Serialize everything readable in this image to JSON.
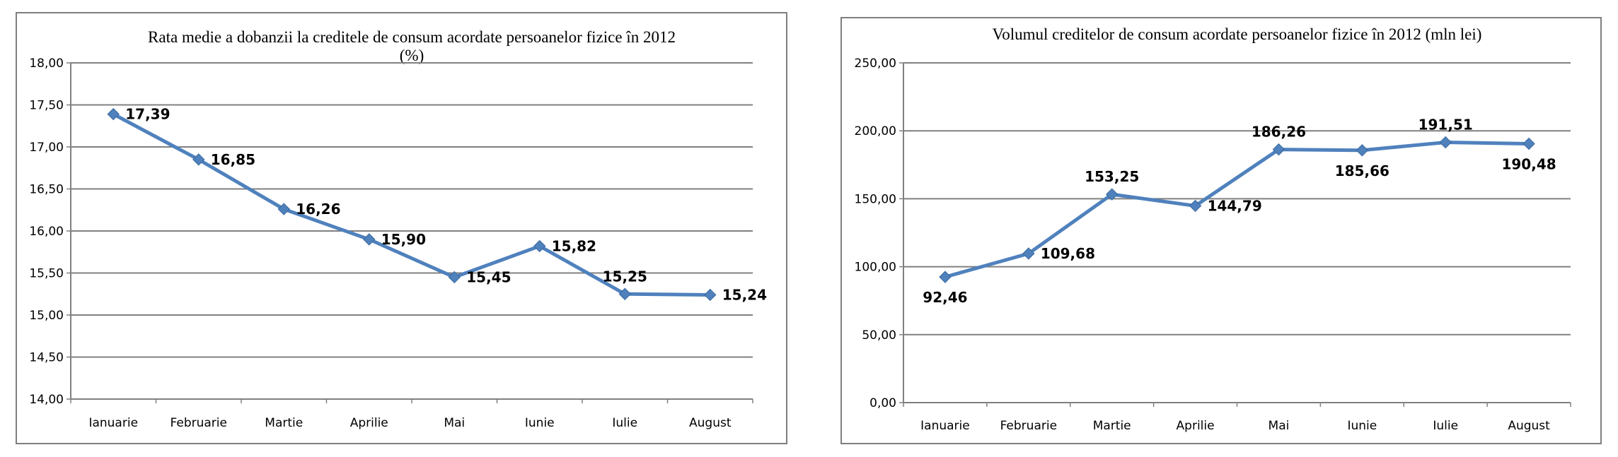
{
  "chart_data": [
    {
      "type": "line",
      "title": "Rata medie a dobanzii la creditele de consum acordate persoanelor fizice în 2012",
      "subtitle": "(%)",
      "categories": [
        "Ianuarie",
        "Februarie",
        "Martie",
        "Aprilie",
        "Mai",
        "Iunie",
        "Iulie",
        "August"
      ],
      "values": [
        17.39,
        16.85,
        16.26,
        15.9,
        15.45,
        15.82,
        15.25,
        15.24
      ],
      "data_labels": [
        "17,39",
        "16,85",
        "16,26",
        "15,90",
        "15,45",
        "15,82",
        "15,25",
        "15,24"
      ],
      "ylim": [
        14.0,
        18.0
      ],
      "yticks": [
        14.0,
        14.5,
        15.0,
        15.5,
        16.0,
        16.5,
        17.0,
        17.5,
        18.0
      ],
      "ytick_labels": [
        "14,00",
        "14,50",
        "15,00",
        "15,50",
        "16,00",
        "16,50",
        "17,00",
        "17,50",
        "18,00"
      ],
      "label_positions": [
        "right",
        "right",
        "right",
        "right",
        "right",
        "right",
        "above",
        "right"
      ],
      "grid": true,
      "legend": "none",
      "series_color": "#4f81bd"
    },
    {
      "type": "line",
      "title": "Volumul creditelor de consum acordate persoanelor fizice în 2012 (mln lei)",
      "subtitle": "",
      "categories": [
        "Ianuarie",
        "Februarie",
        "Martie",
        "Aprilie",
        "Mai",
        "Iunie",
        "Iulie",
        "August"
      ],
      "values": [
        92.46,
        109.68,
        153.25,
        144.79,
        186.26,
        185.66,
        191.51,
        190.48
      ],
      "data_labels": [
        "92,46",
        "109,68",
        "153,25",
        "144,79",
        "186,26",
        "185,66",
        "191,51",
        "190,48"
      ],
      "ylim": [
        0,
        250
      ],
      "yticks": [
        0,
        50,
        100,
        150,
        200,
        250
      ],
      "ytick_labels": [
        "0,00",
        "50,00",
        "100,00",
        "150,00",
        "200,00",
        "250,00"
      ],
      "label_positions": [
        "below",
        "right",
        "above",
        "right",
        "above",
        "below",
        "above",
        "below"
      ],
      "grid": true,
      "legend": "none",
      "series_color": "#4f81bd"
    }
  ]
}
